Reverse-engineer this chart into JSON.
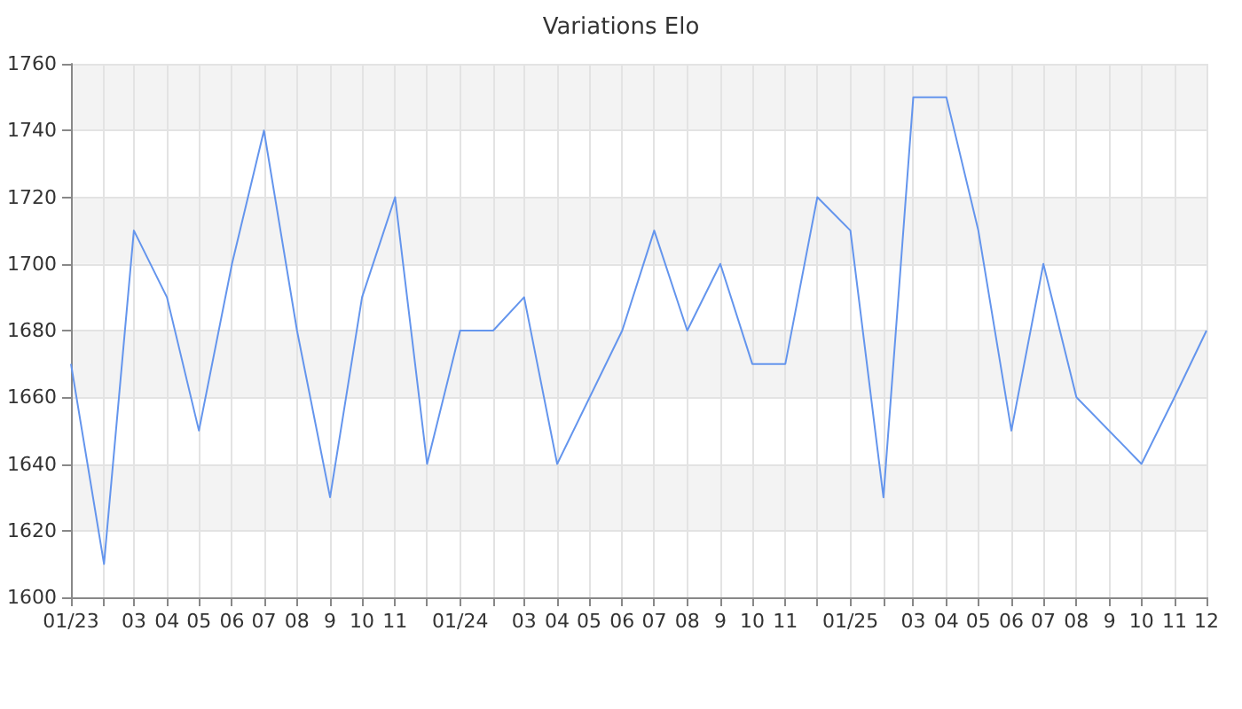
{
  "chart_data": {
    "type": "line",
    "title": "Variations Elo",
    "x": [
      "2023-01",
      "2023-02",
      "2023-03",
      "2023-04",
      "2023-05",
      "2023-06",
      "2023-07",
      "2023-08",
      "2023-09",
      "2023-10",
      "2023-11",
      "2023-12",
      "2024-01",
      "2024-02",
      "2024-03",
      "2024-04",
      "2024-06",
      "2024-07",
      "2024-08",
      "2024-09",
      "2024-10",
      "2024-11",
      "2024-12",
      "2025-01",
      "2025-02",
      "2025-03",
      "2025-04",
      "2025-05",
      "2025-06",
      "2025-07",
      "2025-08",
      "2025-10",
      "2025-11",
      "2025-12"
    ],
    "series": [
      {
        "color": "#6495ed",
        "values": [
          1670,
          1610,
          1710,
          1690,
          1650,
          1700,
          1740,
          1680,
          1630,
          1690,
          1720,
          1640,
          1680,
          1680,
          1690,
          1640,
          1680,
          1710,
          1680,
          1700,
          1670,
          1670,
          1720,
          1710,
          1630,
          1750,
          1750,
          1710,
          1650,
          1700,
          1660,
          1640,
          1660,
          1680
        ]
      }
    ],
    "xlim": [
      "2023-01",
      "2025-12"
    ],
    "xticks": [
      {
        "value": "2023-01",
        "label": "01/23"
      },
      {
        "value": "2023-02",
        "label": null
      },
      {
        "value": "2023-03",
        "label": "03"
      },
      {
        "value": "2023-04",
        "label": "04"
      },
      {
        "value": "2023-05",
        "label": "05"
      },
      {
        "value": "2023-06",
        "label": "06"
      },
      {
        "value": "2023-07",
        "label": "07"
      },
      {
        "value": "2023-08",
        "label": "08"
      },
      {
        "value": "2023-09",
        "label": "9"
      },
      {
        "value": "2023-10",
        "label": "10"
      },
      {
        "value": "2023-11",
        "label": "11"
      },
      {
        "value": "2023-12",
        "label": null
      },
      {
        "value": "2024-01",
        "label": "01/24"
      },
      {
        "value": "2024-02",
        "label": null
      },
      {
        "value": "2024-03",
        "label": "03"
      },
      {
        "value": "2024-04",
        "label": "04"
      },
      {
        "value": "2024-05",
        "label": "05"
      },
      {
        "value": "2024-06",
        "label": "06"
      },
      {
        "value": "2024-07",
        "label": "07"
      },
      {
        "value": "2024-08",
        "label": "08"
      },
      {
        "value": "2024-09",
        "label": "9"
      },
      {
        "value": "2024-10",
        "label": "10"
      },
      {
        "value": "2024-11",
        "label": "11"
      },
      {
        "value": "2024-12",
        "label": null
      },
      {
        "value": "2025-01",
        "label": "01/25"
      },
      {
        "value": "2025-02",
        "label": null
      },
      {
        "value": "2025-03",
        "label": "03"
      },
      {
        "value": "2025-04",
        "label": "04"
      },
      {
        "value": "2025-05",
        "label": "05"
      },
      {
        "value": "2025-06",
        "label": "06"
      },
      {
        "value": "2025-07",
        "label": "07"
      },
      {
        "value": "2025-08",
        "label": "08"
      },
      {
        "value": "2025-09",
        "label": "9"
      },
      {
        "value": "2025-10",
        "label": "10"
      },
      {
        "value": "2025-11",
        "label": "11"
      },
      {
        "value": "2025-12",
        "label": "12"
      }
    ],
    "ylim": [
      1600,
      1760
    ],
    "yticks": [
      1600,
      1620,
      1640,
      1660,
      1680,
      1700,
      1720,
      1740,
      1760
    ],
    "grid": true,
    "marker": "none",
    "line_style": "solid"
  }
}
